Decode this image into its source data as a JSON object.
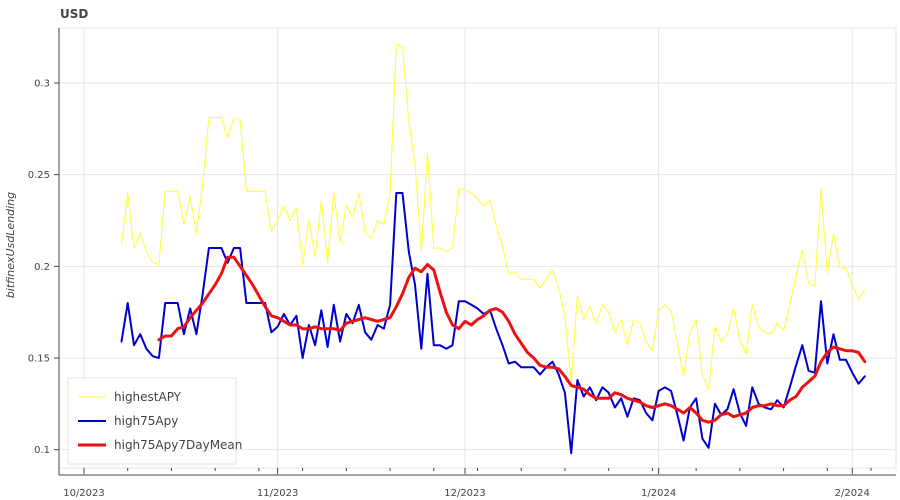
{
  "chart_data": {
    "type": "line",
    "title": "USD",
    "xlabel": "",
    "ylabel": "bitfinexUsdLending",
    "x_start": "2023-10-07",
    "x_step_days": 1,
    "x_ticks": [
      "2023-10-01",
      "2023-11-01",
      "2023-12-01",
      "2024-01-01",
      "2024-02-01"
    ],
    "x_tick_labels": [
      "10/2023",
      "11/2023",
      "12/2023",
      "1/2024",
      "2/2024"
    ],
    "ylim": [
      0.09,
      0.33
    ],
    "y_ticks": [
      0.1,
      0.15,
      0.2,
      0.25,
      0.3
    ],
    "y_tick_labels": [
      "0.1",
      "0.15",
      "0.2",
      "0.25",
      "0.3"
    ],
    "grid": true,
    "legend_position": "bottom-left",
    "series": [
      {
        "name": "highestAPY",
        "color": "#ffff33",
        "width": 1,
        "values": [
          0.212,
          0.24,
          0.21,
          0.218,
          0.208,
          0.202,
          0.201,
          0.241,
          0.241,
          0.241,
          0.223,
          0.238,
          0.218,
          0.245,
          0.281,
          0.281,
          0.281,
          0.27,
          0.281,
          0.28,
          0.241,
          0.241,
          0.241,
          0.241,
          0.219,
          0.225,
          0.233,
          0.225,
          0.232,
          0.201,
          0.225,
          0.205,
          0.236,
          0.202,
          0.24,
          0.213,
          0.233,
          0.227,
          0.24,
          0.219,
          0.215,
          0.225,
          0.223,
          0.24,
          0.321,
          0.32,
          0.279,
          0.256,
          0.208,
          0.262,
          0.21,
          0.21,
          0.208,
          0.21,
          0.242,
          0.242,
          0.24,
          0.237,
          0.233,
          0.236,
          0.222,
          0.211,
          0.196,
          0.197,
          0.193,
          0.193,
          0.193,
          0.188,
          0.193,
          0.198,
          0.188,
          0.173,
          0.137,
          0.184,
          0.171,
          0.178,
          0.169,
          0.179,
          0.175,
          0.164,
          0.171,
          0.157,
          0.171,
          0.169,
          0.159,
          0.154,
          0.176,
          0.179,
          0.176,
          0.158,
          0.14,
          0.164,
          0.171,
          0.141,
          0.133,
          0.167,
          0.159,
          0.163,
          0.177,
          0.16,
          0.152,
          0.179,
          0.167,
          0.164,
          0.163,
          0.169,
          0.165,
          0.179,
          0.195,
          0.209,
          0.191,
          0.189,
          0.242,
          0.196,
          0.218,
          0.199,
          0.199,
          0.19,
          0.182,
          0.187
        ]
      },
      {
        "name": "high75Apy",
        "color": "#0000cc",
        "width": 2,
        "values": [
          0.159,
          0.18,
          0.157,
          0.163,
          0.155,
          0.151,
          0.15,
          0.18,
          0.18,
          0.18,
          0.163,
          0.177,
          0.163,
          0.185,
          0.21,
          0.21,
          0.21,
          0.202,
          0.21,
          0.21,
          0.18,
          0.18,
          0.18,
          0.18,
          0.164,
          0.167,
          0.174,
          0.168,
          0.173,
          0.15,
          0.168,
          0.157,
          0.176,
          0.156,
          0.179,
          0.159,
          0.174,
          0.169,
          0.179,
          0.164,
          0.16,
          0.168,
          0.166,
          0.179,
          0.24,
          0.24,
          0.208,
          0.19,
          0.155,
          0.196,
          0.157,
          0.157,
          0.155,
          0.157,
          0.181,
          0.181,
          0.179,
          0.177,
          0.174,
          0.176,
          0.166,
          0.157,
          0.147,
          0.148,
          0.145,
          0.145,
          0.145,
          0.141,
          0.145,
          0.148,
          0.141,
          0.131,
          0.098,
          0.138,
          0.129,
          0.134,
          0.127,
          0.134,
          0.131,
          0.123,
          0.128,
          0.118,
          0.128,
          0.127,
          0.12,
          0.116,
          0.132,
          0.134,
          0.132,
          0.119,
          0.105,
          0.123,
          0.128,
          0.106,
          0.101,
          0.125,
          0.119,
          0.122,
          0.133,
          0.12,
          0.113,
          0.134,
          0.125,
          0.123,
          0.122,
          0.127,
          0.123,
          0.134,
          0.146,
          0.157,
          0.143,
          0.142,
          0.181,
          0.147,
          0.163,
          0.149,
          0.149,
          0.142,
          0.136,
          0.14
        ]
      },
      {
        "name": "high75Apy7DayMean",
        "color": "#ee1111",
        "width": 3,
        "offset_days": 6,
        "values": [
          0.16,
          0.162,
          0.162,
          0.166,
          0.167,
          0.172,
          0.176,
          0.18,
          0.185,
          0.19,
          0.196,
          0.205,
          0.205,
          0.2,
          0.195,
          0.19,
          0.184,
          0.178,
          0.173,
          0.172,
          0.17,
          0.168,
          0.168,
          0.166,
          0.166,
          0.167,
          0.166,
          0.166,
          0.166,
          0.165,
          0.169,
          0.17,
          0.171,
          0.172,
          0.171,
          0.17,
          0.171,
          0.172,
          0.178,
          0.185,
          0.194,
          0.199,
          0.197,
          0.201,
          0.198,
          0.186,
          0.175,
          0.168,
          0.166,
          0.17,
          0.168,
          0.171,
          0.173,
          0.176,
          0.177,
          0.175,
          0.17,
          0.163,
          0.158,
          0.153,
          0.15,
          0.146,
          0.145,
          0.145,
          0.144,
          0.14,
          0.135,
          0.134,
          0.133,
          0.13,
          0.128,
          0.128,
          0.128,
          0.131,
          0.13,
          0.128,
          0.127,
          0.126,
          0.124,
          0.123,
          0.124,
          0.125,
          0.124,
          0.122,
          0.12,
          0.123,
          0.12,
          0.116,
          0.115,
          0.116,
          0.119,
          0.12,
          0.118,
          0.119,
          0.12,
          0.123,
          0.124,
          0.124,
          0.125,
          0.124,
          0.124,
          0.127,
          0.129,
          0.134,
          0.137,
          0.14,
          0.148,
          0.153,
          0.156,
          0.155,
          0.154,
          0.154,
          0.153,
          0.148
        ]
      }
    ]
  }
}
